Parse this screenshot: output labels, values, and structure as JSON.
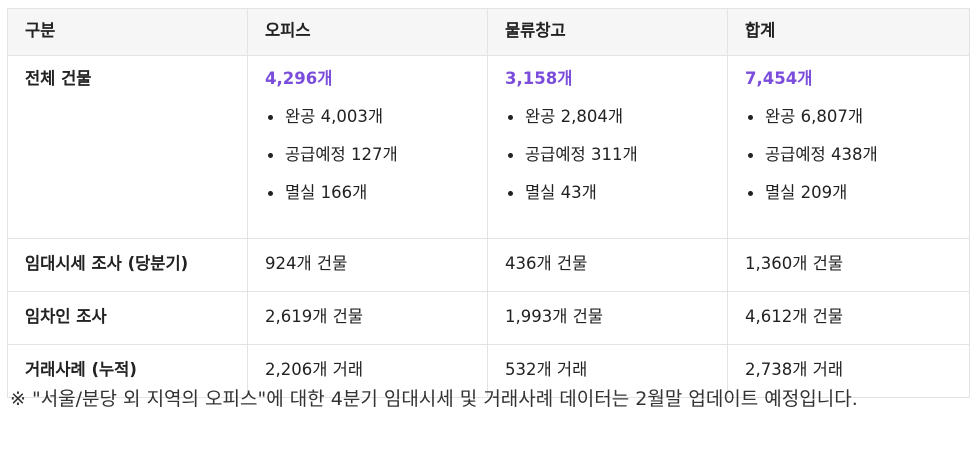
{
  "header": {
    "category": "구분",
    "office": "오피스",
    "logistics": "물류창고",
    "total": "합계"
  },
  "rows": {
    "buildings": {
      "label": "전체 건물",
      "office": {
        "total": "4,296개",
        "items": [
          "완공 4,003개",
          "공급예정 127개",
          "멸실 166개"
        ]
      },
      "logistics": {
        "total": "3,158개",
        "items": [
          "완공 2,804개",
          "공급예정 311개",
          "멸실 43개"
        ]
      },
      "total": {
        "total": "7,454개",
        "items": [
          "완공 6,807개",
          "공급예정 438개",
          "멸실 209개"
        ]
      }
    },
    "rent_survey": {
      "label": "임대시세 조사 (당분기)",
      "office": "924개 건물",
      "logistics": "436개 건물",
      "total": "1,360개 건물"
    },
    "tenant_survey": {
      "label": "임차인 조사",
      "office": "2,619개 건물",
      "logistics": "1,993개 건물",
      "total": "4,612개 건물"
    },
    "transactions": {
      "label": "거래사례 (누적)",
      "office": "2,206개 거래",
      "logistics": "532개 거래",
      "total": "2,738개 거래"
    }
  },
  "note": "※ \"서울/분당 외 지역의 오피스\"에 대한 4분기 임대시세 및 거래사례 데이터는 2월말 업데이트 예정입니다.",
  "colors": {
    "accent": "#7b4ddb",
    "header_bg": "#f6f6f6",
    "border": "#e3e3e3"
  }
}
